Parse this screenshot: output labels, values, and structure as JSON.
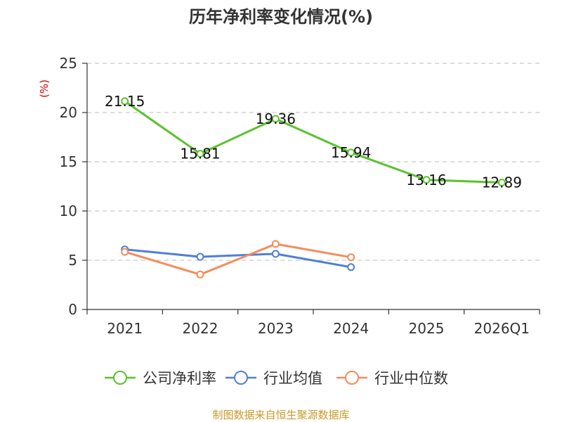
{
  "chart_data": {
    "type": "line",
    "title": "历年净利率变化情况(%)",
    "ylabel": "(%)",
    "xlabel": "",
    "categories": [
      "2021",
      "2022",
      "2023",
      "2024",
      "2025",
      "2026Q1"
    ],
    "ylim": [
      0,
      25
    ],
    "yticks": [
      0,
      5,
      10,
      15,
      20,
      25
    ],
    "grid": true,
    "legend_position": "bottom",
    "series": [
      {
        "name": "公司净利率",
        "color": "#5cc12f",
        "values": [
          21.15,
          15.81,
          19.36,
          15.94,
          13.16,
          12.89
        ],
        "labels": [
          "21.15",
          "15.81",
          "19.36",
          "15.94",
          "13.16",
          "12.89"
        ]
      },
      {
        "name": "行业均值",
        "color": "#4f7fd6",
        "values": [
          6.1,
          5.35,
          5.65,
          4.3,
          null,
          null
        ]
      },
      {
        "name": "行业中位数",
        "color": "#f48c5c",
        "values": [
          5.85,
          3.55,
          6.65,
          5.3,
          null,
          null
        ]
      }
    ],
    "source": "制图数据来自恒生聚源数据库"
  }
}
